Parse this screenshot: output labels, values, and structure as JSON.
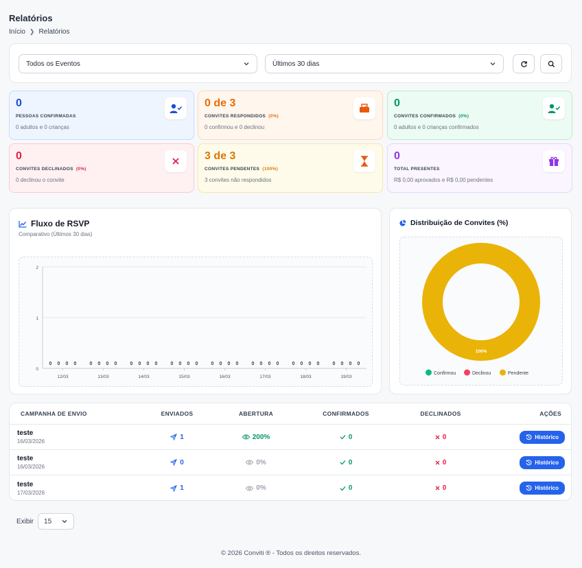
{
  "page": {
    "title": "Relatórios"
  },
  "breadcrumb": {
    "home": "Início",
    "current": "Relatórios"
  },
  "filters": {
    "event": "Todos os Eventos",
    "period": "Últimos 30 dias"
  },
  "stats": [
    {
      "value": "0",
      "label": "PESSOAS CONFIRMADAS",
      "pct": "",
      "sub": "0 adultos e 0 crianças",
      "color": "#1d4ed8",
      "bg": "#eff5ff",
      "border": "#c7dbfe",
      "icon": "user-check-icon"
    },
    {
      "value": "0 de 3",
      "label": "CONVITES RESPONDIDOS",
      "pct": "(0%)",
      "sub": "0 confirmou e 0 declinou",
      "color": "#ea6c0c",
      "bg": "#fff6ed",
      "border": "#fcd9b8",
      "icon": "inbox-icon"
    },
    {
      "value": "0",
      "label": "CONVITES CONFIRMADOS",
      "pct": "(0%)",
      "sub": "0 adultos e 0 crianças confirmados",
      "color": "#059669",
      "bg": "#ecfbf3",
      "border": "#b9ecd2",
      "icon": "user-check-icon"
    },
    {
      "value": "0",
      "label": "CONVITES DECLINADOS",
      "pct": "(0%)",
      "sub": "0 declinou o convite",
      "color": "#e11d48",
      "bg": "#fff1f2",
      "border": "#fbc8cf",
      "icon": "x-icon"
    },
    {
      "value": "3 de 3",
      "label": "CONVITES PENDENTES",
      "pct": "(100%)",
      "sub": "3 convites não respondidos",
      "color": "#d97706",
      "bg": "#fffbea",
      "border": "#f8e6a6",
      "icon": "hourglass-icon"
    },
    {
      "value": "0",
      "label": "TOTAL PRESENTES",
      "pct": "",
      "sub": "R$ 0,00 aprovados e R$ 0,00 pendentes",
      "color": "#9333ea",
      "bg": "#faf5ff",
      "border": "#e6d5fb",
      "icon": "gift-icon"
    }
  ],
  "rsvp": {
    "title": "Fluxo de RSVP",
    "subtitle": "Comparativo (Últimos 30 dias)"
  },
  "donut": {
    "title": "Distribuição de Convites (%)",
    "label": "100%"
  },
  "chart_data": [
    {
      "type": "bar",
      "categories": [
        "12/03",
        "13/03",
        "14/03",
        "15/03",
        "16/03",
        "17/03",
        "18/03",
        "19/03"
      ],
      "series": [
        {
          "values": [
            0,
            0,
            0,
            0,
            0,
            0,
            0,
            0
          ]
        },
        {
          "values": [
            0,
            0,
            0,
            0,
            0,
            0,
            0,
            0
          ]
        },
        {
          "values": [
            0,
            0,
            0,
            0,
            0,
            0,
            0,
            0
          ]
        },
        {
          "values": [
            0,
            0,
            0,
            0,
            0,
            0,
            0,
            0
          ]
        }
      ],
      "data_labels": [
        "0",
        "0",
        "0",
        "0"
      ],
      "yticks": [
        "0",
        "1",
        "2"
      ],
      "ylim": [
        0,
        2
      ],
      "grid": true
    },
    {
      "type": "pie",
      "labels": [
        "Confirmou",
        "Declinou",
        "Pendente"
      ],
      "values": [
        0,
        0,
        100
      ],
      "colors": [
        "#10b981",
        "#f43f5e",
        "#eab308"
      ],
      "legend": "bottom"
    }
  ],
  "table": {
    "headers": [
      "CAMPANHA DE ENVIO",
      "ENVIADOS",
      "ABERTURA",
      "CONFIRMADOS",
      "DECLINADOS",
      "AÇÕES"
    ],
    "button_label": "Histórico",
    "rows": [
      {
        "name": "teste",
        "date": "16/03/2026",
        "sent": "1",
        "open": "200%",
        "confirmed": "0",
        "declined": "0",
        "open_active": true
      },
      {
        "name": "teste",
        "date": "16/03/2026",
        "sent": "0",
        "open": "0%",
        "confirmed": "0",
        "declined": "0",
        "open_active": false
      },
      {
        "name": "teste",
        "date": "17/03/2026",
        "sent": "1",
        "open": "0%",
        "confirmed": "0",
        "declined": "0",
        "open_active": false
      }
    ]
  },
  "pager": {
    "label": "Exibir",
    "value": "15"
  },
  "footer": "© 2026 Conviti ® - Todos os direitos reservados."
}
